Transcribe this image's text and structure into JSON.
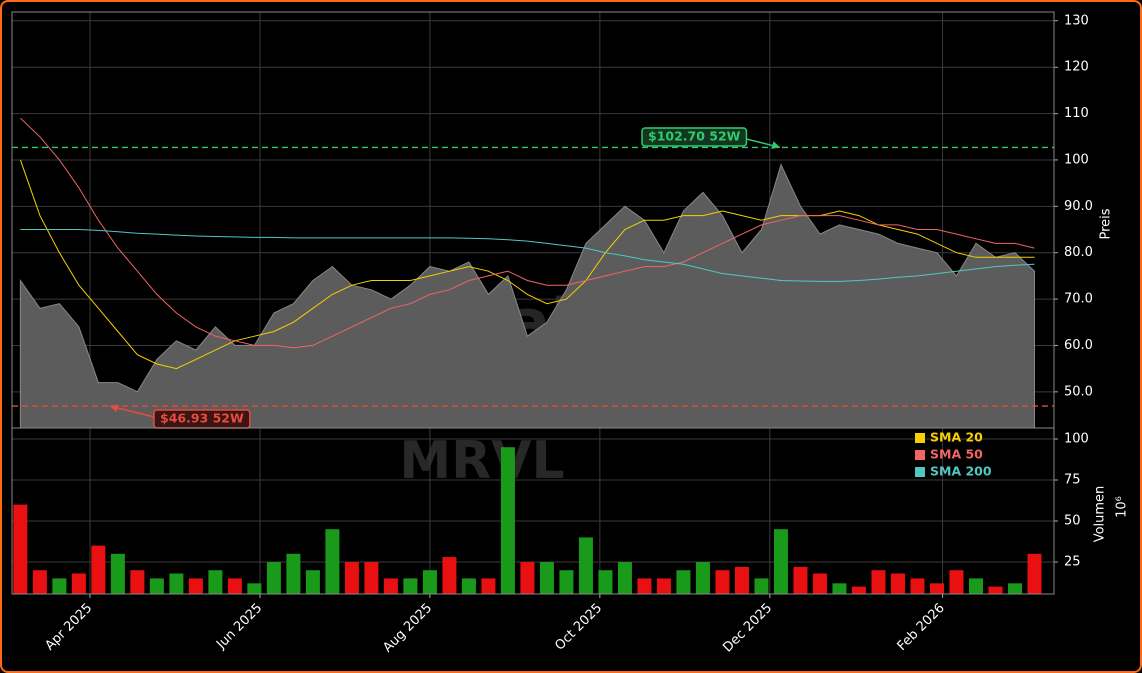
{
  "chart_data": [
    {
      "type": "area",
      "watermark": "xsignals.trade",
      "ylabel": "Preis",
      "x": [
        "2025-03-07",
        "2025-03-14",
        "2025-03-21",
        "2025-03-28",
        "2025-04-04",
        "2025-04-11",
        "2025-04-18",
        "2025-04-25",
        "2025-05-02",
        "2025-05-09",
        "2025-05-16",
        "2025-05-23",
        "2025-05-30",
        "2025-06-06",
        "2025-06-13",
        "2025-06-20",
        "2025-06-27",
        "2025-07-04",
        "2025-07-11",
        "2025-07-18",
        "2025-07-25",
        "2025-08-01",
        "2025-08-08",
        "2025-08-15",
        "2025-08-22",
        "2025-08-29",
        "2025-09-05",
        "2025-09-12",
        "2025-09-19",
        "2025-09-26",
        "2025-10-03",
        "2025-10-10",
        "2025-10-17",
        "2025-10-24",
        "2025-10-31",
        "2025-11-07",
        "2025-11-14",
        "2025-11-21",
        "2025-11-28",
        "2025-12-05",
        "2025-12-12",
        "2025-12-19",
        "2025-12-26",
        "2026-01-02",
        "2026-01-09",
        "2026-01-16",
        "2026-01-23",
        "2026-01-30",
        "2026-02-06",
        "2026-02-13",
        "2026-02-20",
        "2026-02-27",
        "2026-03-06"
      ],
      "series": [
        {
          "color": "#5c5c5c",
          "values": [
            74,
            68,
            69,
            64,
            52,
            52,
            50,
            57,
            61,
            59,
            64,
            60,
            60,
            67,
            69,
            74,
            77,
            73,
            72,
            70,
            73,
            77,
            76,
            78,
            71,
            75,
            62,
            65,
            72,
            82,
            86,
            90,
            87,
            80,
            89,
            93,
            88,
            80,
            85,
            99,
            90,
            84,
            86,
            85,
            84,
            82,
            81,
            80,
            75,
            82,
            79,
            80,
            76
          ]
        },
        {
          "name": "SMA 20",
          "color": "#f5d000",
          "values": [
            100,
            88,
            80,
            73,
            68,
            63,
            58,
            56,
            55,
            57,
            59,
            61,
            62,
            63,
            65,
            68,
            71,
            73,
            74,
            74,
            74,
            75,
            76,
            77,
            76,
            74,
            71,
            69,
            70,
            74,
            80,
            85,
            87,
            87,
            88,
            88,
            89,
            88,
            87,
            88,
            88,
            88,
            89,
            88,
            86,
            85,
            84,
            82,
            80,
            79,
            79,
            79,
            79
          ]
        },
        {
          "name": "SMA 50",
          "color": "#f06565",
          "values": [
            109,
            105,
            100,
            94,
            87,
            81,
            76,
            71,
            67,
            64,
            62,
            61,
            60,
            60,
            59.5,
            60,
            62,
            64,
            66,
            68,
            69,
            71,
            72,
            74,
            75,
            76,
            74,
            73,
            73,
            74,
            75,
            76,
            77,
            77,
            78,
            80,
            82,
            84,
            86,
            87,
            88,
            88,
            88,
            87,
            86,
            86,
            85,
            85,
            84,
            83,
            82,
            82,
            81
          ]
        },
        {
          "name": "SMA 200",
          "color": "#4fc9c0",
          "values": [
            85,
            85,
            85,
            85,
            84.8,
            84.5,
            84.2,
            84,
            83.8,
            83.6,
            83.5,
            83.4,
            83.3,
            83.3,
            83.2,
            83.2,
            83.2,
            83.2,
            83.2,
            83.2,
            83.2,
            83.2,
            83.2,
            83.1,
            83,
            82.8,
            82.5,
            82,
            81.5,
            81,
            80,
            79.3,
            78.5,
            78,
            77.5,
            76.5,
            75.5,
            75,
            74.5,
            74,
            73.9,
            73.8,
            73.8,
            74,
            74.3,
            74.7,
            75,
            75.5,
            76,
            76.5,
            77,
            77.3,
            77.5
          ]
        }
      ],
      "annotations": [
        {
          "value": 102.7,
          "label": "$102.70 52W",
          "color": "#2ecc71"
        },
        {
          "value": 46.93,
          "label": "$46.93 52W",
          "color": "#e74c3c"
        }
      ],
      "ylim": [
        42.2,
        131.9
      ],
      "yticks": [
        {
          "value": 50,
          "label": "50.0"
        },
        {
          "value": 60,
          "label": "60.0"
        },
        {
          "value": 70,
          "label": "70.0"
        },
        {
          "value": 80,
          "label": "80.0"
        },
        {
          "value": 90,
          "label": "90.0"
        },
        {
          "value": 100,
          "label": "100"
        },
        {
          "value": 110,
          "label": "110"
        },
        {
          "value": 120,
          "label": "120"
        },
        {
          "value": 130,
          "label": "130"
        }
      ],
      "grid": true
    },
    {
      "type": "bar",
      "watermark": "MRVL",
      "ylabel": "Volumen",
      "yunit": "10⁶",
      "x": [
        "2025-03-07",
        "2025-03-14",
        "2025-03-21",
        "2025-03-28",
        "2025-04-04",
        "2025-04-11",
        "2025-04-18",
        "2025-04-25",
        "2025-05-02",
        "2025-05-09",
        "2025-05-16",
        "2025-05-23",
        "2025-05-30",
        "2025-06-06",
        "2025-06-13",
        "2025-06-20",
        "2025-06-27",
        "2025-07-04",
        "2025-07-11",
        "2025-07-18",
        "2025-07-25",
        "2025-08-01",
        "2025-08-08",
        "2025-08-15",
        "2025-08-22",
        "2025-08-29",
        "2025-09-05",
        "2025-09-12",
        "2025-09-19",
        "2025-09-26",
        "2025-10-03",
        "2025-10-10",
        "2025-10-17",
        "2025-10-24",
        "2025-10-31",
        "2025-11-07",
        "2025-11-14",
        "2025-11-21",
        "2025-11-28",
        "2025-12-05",
        "2025-12-12",
        "2025-12-19",
        "2025-12-26",
        "2026-01-02",
        "2026-01-09",
        "2026-01-16",
        "2026-01-23",
        "2026-01-30",
        "2026-02-06",
        "2026-02-13",
        "2026-02-20",
        "2026-02-27",
        "2026-03-06"
      ],
      "values": [
        60,
        20,
        15,
        18,
        35,
        30,
        20,
        15,
        18,
        15,
        20,
        15,
        12,
        25,
        30,
        20,
        45,
        25,
        25,
        15,
        15,
        20,
        28,
        15,
        15,
        95,
        25,
        25,
        20,
        40,
        20,
        25,
        15,
        15,
        20,
        25,
        20,
        22,
        15,
        45,
        22,
        18,
        12,
        10,
        20,
        18,
        15,
        12,
        20,
        15,
        10,
        12,
        30
      ],
      "up_color": "#1a9a1a",
      "down_color": "#e81010",
      "ylim": [
        5.5,
        106.7
      ],
      "yticks": [
        25,
        50,
        75,
        100
      ],
      "xlim": [
        "2025-03-04",
        "2026-03-13"
      ],
      "xticks": [
        {
          "value": "2025-04-01",
          "label": "Apr 2025"
        },
        {
          "value": "2025-06-01",
          "label": "Jun 2025"
        },
        {
          "value": "2025-08-01",
          "label": "Aug 2025"
        },
        {
          "value": "2025-10-01",
          "label": "Oct 2025"
        },
        {
          "value": "2025-12-01",
          "label": "Dec 2025"
        },
        {
          "value": "2026-02-01",
          "label": "Feb 2026"
        }
      ],
      "grid": true
    }
  ]
}
